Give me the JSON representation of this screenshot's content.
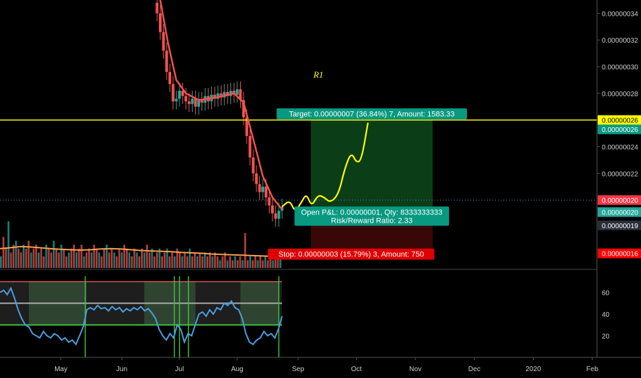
{
  "chart_data": {
    "type": "candlestick",
    "main_panel": {
      "y_ticks": [
        "0.00000034",
        "0.00000032",
        "0.00000030",
        "0.00000028",
        "0.00000024",
        "0.00000022"
      ],
      "y_tick_values": [
        34,
        32,
        30,
        28,
        24,
        22
      ],
      "ylim": [
        14.8,
        35
      ],
      "price_tags": [
        {
          "label": "0.00000026",
          "value": 26.0,
          "bg": "#ffff00",
          "fg": "#000000"
        },
        {
          "label": "0.00000026",
          "value": 25.3,
          "bg": "#089981",
          "fg": "#ffffff"
        },
        {
          "label": "0.00000020",
          "value": 20.0,
          "bg": "#f23645",
          "fg": "#ffffff"
        },
        {
          "label": "0.00000020",
          "value": 19.1,
          "bg": "#26a69a",
          "fg": "#ffffff"
        },
        {
          "label": "0.00000019",
          "value": 18.1,
          "bg": "#2a2e39",
          "fg": "#ffffff"
        },
        {
          "label": "0.00000016",
          "value": 16.0,
          "bg": "#ff0000",
          "fg": "#ffffff"
        }
      ],
      "horizontal_line": {
        "value": 26.0,
        "color": "#ffff00"
      },
      "dotted_line": {
        "value": 20.0,
        "color": "#5b9bd5"
      },
      "annotation_text": "R1",
      "position": {
        "entry": 19.0,
        "target": 26.0,
        "stop": 16.0,
        "start_x": 0.485,
        "end_x": 0.675,
        "target_label": "Target: 0.00000007 (36.84%) 7, Amount: 1583.33",
        "open_label_1": "Open P&L: 0.00000001, Qty: 8333333333",
        "open_label_2": "Risk/Reward Ratio: 2.33",
        "stop_label": "Stop: 0.00000003 (15.79%) 3, Amount: 750",
        "profit_color": "#0b3d17",
        "loss_color": "#3a0707"
      },
      "price_series": [
        {
          "x": 0.245,
          "open": 34.8,
          "close": 34.0
        },
        {
          "x": 0.25,
          "open": 34.0,
          "close": 32.6
        },
        {
          "x": 0.255,
          "open": 32.6,
          "close": 31.2
        },
        {
          "x": 0.26,
          "open": 31.2,
          "close": 29.6
        },
        {
          "x": 0.265,
          "open": 29.6,
          "close": 28.7
        },
        {
          "x": 0.27,
          "open": 28.7,
          "close": 27.4
        },
        {
          "x": 0.275,
          "open": 27.4,
          "close": 27.6
        },
        {
          "x": 0.28,
          "open": 27.6,
          "close": 28.2
        },
        {
          "x": 0.285,
          "open": 28.2,
          "close": 27.8
        },
        {
          "x": 0.29,
          "open": 27.8,
          "close": 27.4
        },
        {
          "x": 0.295,
          "open": 27.4,
          "close": 27.2
        },
        {
          "x": 0.3,
          "open": 27.2,
          "close": 27.6
        },
        {
          "x": 0.305,
          "open": 27.6,
          "close": 27.0
        },
        {
          "x": 0.31,
          "open": 27.0,
          "close": 27.5
        },
        {
          "x": 0.315,
          "open": 27.5,
          "close": 27.3
        },
        {
          "x": 0.32,
          "open": 27.3,
          "close": 27.8
        },
        {
          "x": 0.325,
          "open": 27.8,
          "close": 27.4
        },
        {
          "x": 0.33,
          "open": 27.4,
          "close": 27.9
        },
        {
          "x": 0.335,
          "open": 27.9,
          "close": 27.6
        },
        {
          "x": 0.34,
          "open": 27.6,
          "close": 28.0
        },
        {
          "x": 0.345,
          "open": 28.0,
          "close": 27.7
        },
        {
          "x": 0.35,
          "open": 27.7,
          "close": 28.1
        },
        {
          "x": 0.355,
          "open": 28.1,
          "close": 27.8
        },
        {
          "x": 0.36,
          "open": 27.8,
          "close": 28.2
        },
        {
          "x": 0.365,
          "open": 28.2,
          "close": 27.9
        },
        {
          "x": 0.37,
          "open": 27.9,
          "close": 28.3
        },
        {
          "x": 0.375,
          "open": 28.3,
          "close": 27.5
        },
        {
          "x": 0.38,
          "open": 27.5,
          "close": 26.2
        },
        {
          "x": 0.385,
          "open": 26.2,
          "close": 24.8
        },
        {
          "x": 0.39,
          "open": 24.8,
          "close": 23.2
        },
        {
          "x": 0.395,
          "open": 23.2,
          "close": 22.0
        },
        {
          "x": 0.4,
          "open": 22.0,
          "close": 21.2
        },
        {
          "x": 0.405,
          "open": 21.2,
          "close": 20.6
        },
        {
          "x": 0.41,
          "open": 20.6,
          "close": 21.0
        },
        {
          "x": 0.415,
          "open": 21.0,
          "close": 20.2
        },
        {
          "x": 0.42,
          "open": 20.2,
          "close": 19.6
        },
        {
          "x": 0.425,
          "open": 19.6,
          "close": 19.0
        },
        {
          "x": 0.43,
          "open": 19.0,
          "close": 18.6
        },
        {
          "x": 0.435,
          "open": 18.6,
          "close": 19.2
        },
        {
          "x": 0.44,
          "open": 19.2,
          "close": 19.5
        }
      ],
      "ma_line": [
        {
          "x": 0.25,
          "y": 35.0
        },
        {
          "x": 0.262,
          "y": 31.8
        },
        {
          "x": 0.275,
          "y": 29.0
        },
        {
          "x": 0.29,
          "y": 28.0
        },
        {
          "x": 0.31,
          "y": 27.5
        },
        {
          "x": 0.34,
          "y": 27.7
        },
        {
          "x": 0.365,
          "y": 28.0
        },
        {
          "x": 0.38,
          "y": 27.3
        },
        {
          "x": 0.395,
          "y": 24.6
        },
        {
          "x": 0.41,
          "y": 21.8
        },
        {
          "x": 0.425,
          "y": 20.2
        },
        {
          "x": 0.44,
          "y": 19.3
        }
      ],
      "projection_path": [
        {
          "x": 0.44,
          "y": 19.5
        },
        {
          "x": 0.452,
          "y": 20.0
        },
        {
          "x": 0.46,
          "y": 19.1
        },
        {
          "x": 0.47,
          "y": 19.8
        },
        {
          "x": 0.478,
          "y": 20.5
        },
        {
          "x": 0.486,
          "y": 19.5
        },
        {
          "x": 0.496,
          "y": 20.4
        },
        {
          "x": 0.506,
          "y": 20.2
        },
        {
          "x": 0.515,
          "y": 19.8
        },
        {
          "x": 0.528,
          "y": 20.4
        },
        {
          "x": 0.538,
          "y": 22.4
        },
        {
          "x": 0.548,
          "y": 23.6
        },
        {
          "x": 0.556,
          "y": 22.8
        },
        {
          "x": 0.564,
          "y": 23.0
        },
        {
          "x": 0.574,
          "y": 25.8
        }
      ]
    },
    "volume_panel": {
      "bars": [
        3,
        8,
        5,
        12,
        4,
        6,
        7,
        5,
        4,
        6,
        5,
        7,
        4,
        5,
        6,
        4,
        5,
        3,
        6,
        5,
        4,
        7,
        5,
        4,
        6,
        5,
        3,
        4,
        5,
        6,
        4,
        5,
        6,
        3,
        4,
        5,
        4,
        6,
        5,
        4,
        3,
        5,
        6,
        4,
        5,
        4,
        3,
        5,
        4,
        6,
        5,
        4,
        3,
        5,
        4,
        3,
        5,
        4,
        6,
        4,
        5,
        3,
        4,
        5,
        3,
        4,
        5,
        3,
        4,
        3,
        5,
        4,
        3,
        4,
        3,
        5,
        3,
        4,
        3,
        4,
        3,
        4,
        3,
        4,
        3,
        4,
        3,
        2,
        3,
        4,
        2,
        3,
        2,
        3,
        2,
        3,
        2,
        9,
        2,
        3,
        2,
        3,
        2,
        3,
        2,
        3,
        2,
        3,
        2,
        3,
        4,
        3
      ],
      "ma": [
        5,
        5.2,
        5.5,
        5.4,
        5.2,
        5.0,
        4.8,
        4.7,
        4.6,
        4.7,
        4.9,
        5.0,
        4.9,
        4.7,
        4.5,
        4.4,
        4.3,
        4.2,
        4.0,
        3.9,
        3.8,
        3.6,
        3.5,
        3.4,
        3.3,
        3.2,
        3.1,
        3.0,
        2.9
      ]
    },
    "oscillator_panel": {
      "y_ticks": [
        "60",
        "40",
        "20"
      ],
      "y_tick_values": [
        60,
        40,
        20
      ],
      "ylim": [
        0,
        80
      ],
      "upper_band": 70,
      "mid_band": 50,
      "lower_band": 30,
      "values": [
        60,
        62,
        58,
        64,
        55,
        44,
        36,
        30,
        28,
        22,
        20,
        18,
        24,
        20,
        18,
        22,
        20,
        16,
        18,
        14,
        16,
        12,
        20,
        28,
        44,
        46,
        44,
        48,
        45,
        46,
        43,
        47,
        44,
        46,
        42,
        45,
        43,
        46,
        44,
        47,
        43,
        45,
        41,
        36,
        26,
        20,
        16,
        22,
        18,
        30,
        26,
        14,
        22,
        20,
        30,
        40,
        42,
        38,
        44,
        40,
        46,
        44,
        50,
        48,
        52,
        46,
        44,
        36,
        22,
        14,
        12,
        16,
        18,
        24,
        20,
        22,
        18,
        26,
        38
      ],
      "shaded_ranges": [
        [
          0.045,
          0.135
        ],
        [
          0.225,
          0.305
        ],
        [
          0.375,
          0.435
        ]
      ]
    },
    "x_ticks": [
      "May",
      "Jun",
      "Jul",
      "Aug",
      "Sep",
      "Oct",
      "Nov",
      "Dec",
      "2020",
      "Feb"
    ],
    "x_tick_positions": [
      0.095,
      0.19,
      0.28,
      0.37,
      0.465,
      0.556,
      0.648,
      0.74,
      0.832,
      0.924
    ]
  }
}
